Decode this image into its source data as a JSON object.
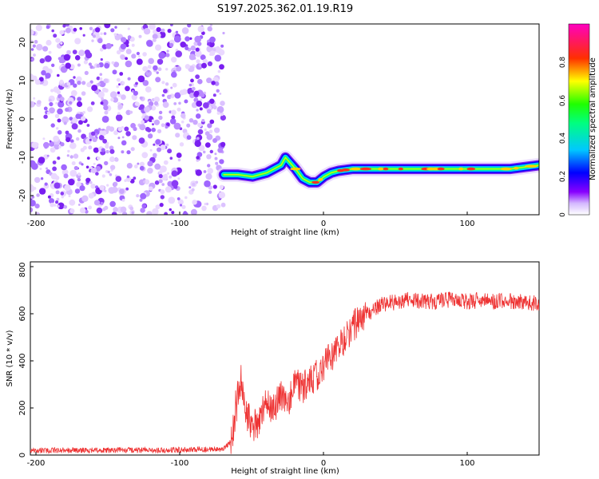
{
  "title": "S197.2025.362.01.19.R19",
  "chart_data": [
    {
      "type": "heatmap",
      "name": "spectrogram",
      "xlabel": "Height of straight line (km)",
      "ylabel": "Frequency (Hz)",
      "xlim": [
        -205,
        150
      ],
      "ylim": [
        -25,
        25
      ],
      "xticks": [
        -200,
        -100,
        0,
        100
      ],
      "yticks": [
        -20,
        -10,
        0,
        10,
        20
      ],
      "colorbar": {
        "label": "Normalized spectral amplitude",
        "range": [
          0,
          1
        ],
        "ticks": [
          0.0,
          0.2,
          0.4,
          0.6,
          0.8
        ]
      },
      "noise_region_x": [
        -205,
        -70
      ],
      "signal_trace": {
        "x": [
          -70,
          -60,
          -50,
          -40,
          -30,
          -27,
          -20,
          -15,
          -10,
          -5,
          0,
          5,
          10,
          20,
          30,
          50,
          70,
          90,
          110,
          130,
          150
        ],
        "freq": [
          -14.5,
          -14.5,
          -15,
          -14,
          -12,
          -10,
          -13,
          -15.5,
          -16.5,
          -16.5,
          -15,
          -14,
          -13.5,
          -13,
          -13,
          -13,
          -13,
          -13,
          -13,
          -13,
          -12
        ]
      }
    },
    {
      "type": "line",
      "name": "snr",
      "xlabel": "Height of straight line (km)",
      "ylabel": "SNR (10 * v/v)",
      "xlim": [
        -205,
        150
      ],
      "ylim": [
        0,
        820
      ],
      "xticks": [
        -200,
        -100,
        0,
        100
      ],
      "yticks": [
        0,
        200,
        400,
        600,
        800
      ],
      "color": "#ee3333",
      "series": [
        {
          "name": "SNR",
          "x": [
            -205,
            -150,
            -100,
            -70,
            -65,
            -62,
            -58,
            -55,
            -50,
            -45,
            -40,
            -35,
            -30,
            -25,
            -20,
            -15,
            -10,
            -5,
            0,
            5,
            10,
            15,
            20,
            25,
            30,
            35,
            40,
            50,
            60,
            70,
            80,
            90,
            100,
            110,
            120,
            130,
            140,
            150
          ],
          "y": [
            20,
            20,
            22,
            25,
            60,
            150,
            320,
            180,
            120,
            150,
            220,
            200,
            260,
            230,
            300,
            280,
            320,
            340,
            380,
            420,
            460,
            500,
            540,
            580,
            600,
            620,
            640,
            650,
            660,
            650,
            655,
            660,
            650,
            660,
            650,
            655,
            650,
            645
          ]
        }
      ]
    }
  ]
}
